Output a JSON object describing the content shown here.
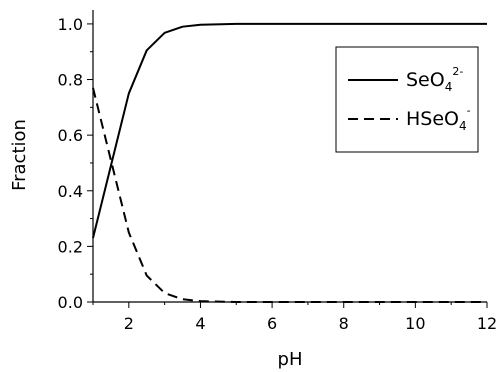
{
  "chart_data": {
    "type": "line",
    "xlabel": "pH",
    "ylabel": "Fraction",
    "xlim": [
      1,
      12
    ],
    "ylim": [
      0,
      1.05
    ],
    "xticks": [
      "2",
      "4",
      "6",
      "8",
      "10",
      "12"
    ],
    "yticks": [
      "0.0",
      "0.2",
      "0.4",
      "0.6",
      "0.8",
      "1.0"
    ],
    "grid": false,
    "legend_position": "top-right",
    "series": [
      {
        "name": "SeO42-",
        "name_parts": {
          "base": "SeO",
          "sub": "4",
          "sup": "2-"
        },
        "line_style": "solid",
        "color": "#000000",
        "x": [
          1,
          1.5,
          2,
          2.5,
          3,
          3.5,
          4,
          5,
          6,
          7,
          8,
          9,
          10,
          11,
          12
        ],
        "y": [
          0.23,
          0.49,
          0.75,
          0.905,
          0.968,
          0.99,
          0.997,
          1.0,
          1.0,
          1.0,
          1.0,
          1.0,
          1.0,
          1.0,
          1.0
        ]
      },
      {
        "name": "HSeO4-",
        "name_parts": {
          "base": "HSeO",
          "sub": "4",
          "sup": "-"
        },
        "line_style": "dashed",
        "color": "#000000",
        "x": [
          1,
          1.5,
          2,
          2.5,
          3,
          3.5,
          4,
          5,
          6,
          7,
          8,
          9,
          10,
          11,
          12
        ],
        "y": [
          0.77,
          0.51,
          0.25,
          0.095,
          0.032,
          0.01,
          0.003,
          0.0,
          0.0,
          0.0,
          0.0,
          0.0,
          0.0,
          0.0,
          0.0
        ]
      }
    ]
  }
}
